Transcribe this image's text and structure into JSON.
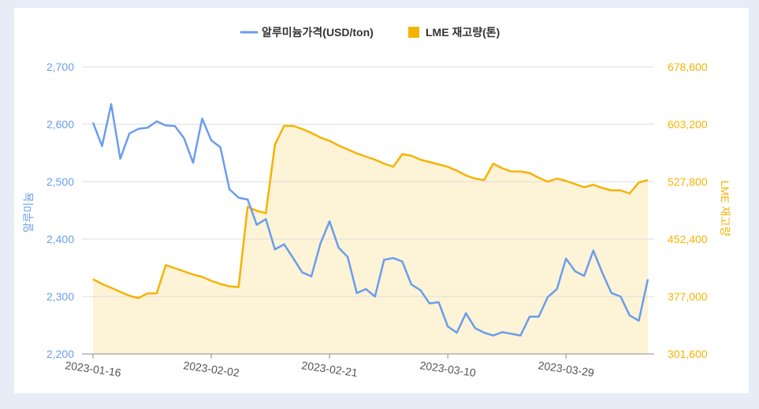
{
  "chart_data": {
    "type": "line",
    "legend": "top-center",
    "grid": true,
    "ylabel": "알루미늄",
    "y2label": "LME 재고량",
    "ylim": [
      2200,
      2700
    ],
    "y2lim": [
      301600,
      678600
    ],
    "yticks": [
      "2,700",
      "2,600",
      "2,500",
      "2,400",
      "2,300",
      "2,200"
    ],
    "y2ticks": [
      "678,600",
      "603,200",
      "527,800",
      "452,400",
      "377,000",
      "301,600"
    ],
    "xticks": [
      "2023-01-16",
      "2023-02-02",
      "2023-02-21",
      "2023-03-10",
      "2023-03-29"
    ],
    "x": [
      "2023-01-16",
      "2023-01-17",
      "2023-01-18",
      "2023-01-19",
      "2023-01-20",
      "2023-01-23",
      "2023-01-24",
      "2023-01-25",
      "2023-01-26",
      "2023-01-27",
      "2023-01-30",
      "2023-01-31",
      "2023-02-01",
      "2023-02-02",
      "2023-02-03",
      "2023-02-06",
      "2023-02-07",
      "2023-02-08",
      "2023-02-09",
      "2023-02-10",
      "2023-02-13",
      "2023-02-14",
      "2023-02-15",
      "2023-02-16",
      "2023-02-17",
      "2023-02-20",
      "2023-02-21",
      "2023-02-22",
      "2023-02-23",
      "2023-02-24",
      "2023-02-27",
      "2023-02-28",
      "2023-03-01",
      "2023-03-02",
      "2023-03-03",
      "2023-03-06",
      "2023-03-07",
      "2023-03-08",
      "2023-03-09",
      "2023-03-10",
      "2023-03-13",
      "2023-03-14",
      "2023-03-15",
      "2023-03-16",
      "2023-03-17",
      "2023-03-20",
      "2023-03-21",
      "2023-03-22",
      "2023-03-23",
      "2023-03-24",
      "2023-03-27",
      "2023-03-28",
      "2023-03-29",
      "2023-03-30",
      "2023-03-31",
      "2023-04-03",
      "2023-04-04",
      "2023-04-05",
      "2023-04-06",
      "2023-04-07",
      "2023-04-10",
      "2023-04-11"
    ],
    "series": [
      {
        "name": "알루미늄가격(USD/ton)",
        "type": "line",
        "axis": "left",
        "color": "#6a9ded",
        "values": [
          2603,
          2562,
          2635,
          2540,
          2584,
          2592,
          2594,
          2605,
          2598,
          2597,
          2576,
          2533,
          2610,
          2572,
          2560,
          2487,
          2472,
          2469,
          2425,
          2435,
          2382,
          2391,
          2367,
          2342,
          2335,
          2392,
          2431,
          2385,
          2369,
          2306,
          2313,
          2300,
          2364,
          2367,
          2361,
          2321,
          2311,
          2288,
          2290,
          2248,
          2237,
          2271,
          2245,
          2237,
          2232,
          2238,
          2235,
          2232,
          2265,
          2265,
          2299,
          2313,
          2366,
          2344,
          2336,
          2380,
          2341,
          2306,
          2300,
          2267,
          2258,
          2330
        ]
      },
      {
        "name": "LME 재고량(톤)",
        "type": "area",
        "axis": "right",
        "color": "#f5b301",
        "fill": "#fdf3d6",
        "values": [
          399700,
          393500,
          388400,
          383200,
          378000,
          374900,
          381100,
          381100,
          418300,
          414200,
          410100,
          405900,
          402800,
          397700,
          393500,
          390400,
          389400,
          494800,
          489600,
          486500,
          576400,
          601100,
          601100,
          597000,
          591900,
          585700,
          581500,
          575300,
          570200,
          565000,
          560900,
          556700,
          551600,
          547400,
          564000,
          561900,
          556700,
          553600,
          550500,
          547400,
          542300,
          536100,
          531900,
          529900,
          551600,
          545400,
          541200,
          541200,
          539200,
          533000,
          527800,
          531900,
          528800,
          524700,
          520600,
          523700,
          519500,
          516400,
          516400,
          512300,
          526800,
          529900
        ]
      }
    ]
  }
}
